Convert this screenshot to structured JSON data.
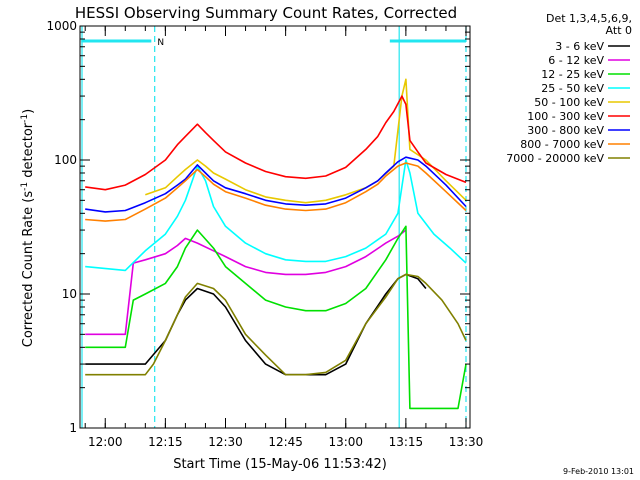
{
  "chart_data": {
    "type": "line",
    "title": "HESSI Observing Summary Count Rates, Corrected",
    "xlabel": "Start Time (15-May-06 11:53:42)",
    "ylabel": "Corrected Count Rate (s",
    "ylabel_sup1": "-1",
    "ylabel_mid": " detector",
    "ylabel_sup2": "-1",
    "ylabel_end": ")",
    "y_scale": "log",
    "ylim": [
      1,
      1000
    ],
    "xlim": [
      "11:53:42",
      "13:31:00"
    ],
    "y_tick_labels": [
      "1",
      "10",
      "100",
      "1000"
    ],
    "x_tick_labels": [
      "12:00",
      "12:15",
      "12:30",
      "12:45",
      "13:00",
      "13:15",
      "13:30"
    ],
    "legend_header": [
      "Det 1,3,4,5,6,9,",
      "Att 0"
    ],
    "legend_placement": "right",
    "footer": "9-Feb-2010 13:01",
    "markers": {
      "n_label": "N",
      "vertical_lines_time": [
        "12:12:20",
        "13:13:20",
        "13:30:00"
      ],
      "top_bars": [
        [
          "11:54:00",
          "12:11:30"
        ],
        [
          "13:11:00",
          "13:30:00"
        ]
      ],
      "color": "#22e6f0"
    },
    "series": [
      {
        "name": "3 - 6 keV",
        "color": "#000000",
        "x": [
          "11:55",
          "12:00",
          "12:10",
          "12:15",
          "12:18",
          "12:20",
          "12:23",
          "12:27",
          "12:30",
          "12:35",
          "12:40",
          "12:45",
          "12:50",
          "12:55",
          "13:00",
          "13:05",
          "13:10",
          "13:13",
          "13:15",
          "13:18",
          "13:20"
        ],
        "y": [
          3,
          3,
          3,
          4.5,
          7,
          9,
          11,
          10,
          8,
          4.5,
          3,
          2.5,
          2.5,
          2.5,
          3,
          6,
          10,
          13,
          14,
          13,
          11
        ]
      },
      {
        "name": "6 - 12 keV",
        "color": "#e000e0",
        "x": [
          "11:55",
          "12:05",
          "12:07",
          "12:10",
          "12:15",
          "12:18",
          "12:20",
          "12:23",
          "12:27",
          "12:30",
          "12:35",
          "12:40",
          "12:45",
          "12:50",
          "12:55",
          "13:00",
          "13:05",
          "13:10",
          "13:13",
          "13:15"
        ],
        "y": [
          5,
          5,
          17,
          18,
          20,
          23,
          26,
          24,
          21,
          19,
          16,
          14.5,
          14,
          14,
          14.5,
          16,
          19,
          24,
          27,
          30
        ]
      },
      {
        "name": "12 - 25 keV",
        "color": "#00e000",
        "x": [
          "11:55",
          "12:05",
          "12:07",
          "12:10",
          "12:15",
          "12:18",
          "12:20",
          "12:23",
          "12:27",
          "12:30",
          "12:35",
          "12:40",
          "12:45",
          "12:50",
          "12:55",
          "13:00",
          "13:05",
          "13:10",
          "13:13",
          "13:15",
          "13:16",
          "13:20",
          "13:28",
          "13:30"
        ],
        "y": [
          4,
          4,
          9,
          10,
          12,
          16,
          22,
          30,
          22,
          16,
          12,
          9,
          8,
          7.5,
          7.5,
          8.5,
          11,
          18,
          26,
          32,
          1.4,
          1.4,
          1.4,
          3
        ]
      },
      {
        "name": "25 - 50 keV",
        "color": "#00ffff",
        "x": [
          "11:55",
          "12:05",
          "12:10",
          "12:15",
          "12:18",
          "12:20",
          "12:23",
          "12:25",
          "12:27",
          "12:30",
          "12:35",
          "12:40",
          "12:45",
          "12:50",
          "12:55",
          "13:00",
          "13:05",
          "13:10",
          "13:13",
          "13:15",
          "13:16",
          "13:18",
          "13:22",
          "13:26",
          "13:30"
        ],
        "y": [
          16,
          15,
          21,
          28,
          38,
          50,
          90,
          70,
          45,
          32,
          24,
          20,
          18,
          17.5,
          17.5,
          19,
          22,
          28,
          40,
          100,
          80,
          40,
          28,
          22,
          17
        ]
      },
      {
        "name": "50 - 100 keV",
        "color": "#e8c800",
        "x": [
          "12:10",
          "12:15",
          "12:18",
          "12:20",
          "12:23",
          "12:25",
          "12:27",
          "12:30",
          "12:35",
          "12:40",
          "12:45",
          "12:50",
          "12:55",
          "13:00",
          "13:05",
          "13:08",
          "13:12",
          "13:14",
          "13:15",
          "13:16",
          "13:20",
          "13:25",
          "13:30"
        ],
        "y": [
          55,
          62,
          75,
          85,
          100,
          90,
          80,
          72,
          60,
          53,
          50,
          48,
          50,
          55,
          62,
          70,
          90,
          300,
          400,
          120,
          100,
          70,
          50
        ]
      },
      {
        "name": "100 - 300 keV",
        "color": "#ff0000",
        "x": [
          "11:55",
          "12:00",
          "12:05",
          "12:10",
          "12:15",
          "12:18",
          "12:20",
          "12:23",
          "12:25",
          "12:27",
          "12:30",
          "12:35",
          "12:40",
          "12:45",
          "12:50",
          "12:55",
          "13:00",
          "13:05",
          "13:08",
          "13:10",
          "13:12",
          "13:14",
          "13:15",
          "13:16",
          "13:18",
          "13:20",
          "13:25",
          "13:30"
        ],
        "y": [
          63,
          60,
          65,
          78,
          100,
          130,
          150,
          185,
          160,
          140,
          115,
          95,
          82,
          75,
          73,
          76,
          88,
          120,
          150,
          190,
          230,
          300,
          260,
          140,
          115,
          95,
          78,
          68
        ]
      },
      {
        "name": "300 - 800 keV",
        "color": "#0000ff",
        "x": [
          "11:55",
          "12:00",
          "12:05",
          "12:10",
          "12:15",
          "12:18",
          "12:20",
          "12:23",
          "12:25",
          "12:27",
          "12:30",
          "12:35",
          "12:40",
          "12:45",
          "12:50",
          "12:55",
          "13:00",
          "13:05",
          "13:08",
          "13:10",
          "13:13",
          "13:15",
          "13:18",
          "13:20",
          "13:25",
          "13:30"
        ],
        "y": [
          43,
          41,
          42,
          48,
          56,
          65,
          72,
          92,
          80,
          70,
          62,
          56,
          50,
          47,
          46,
          47,
          52,
          62,
          70,
          80,
          97,
          105,
          100,
          90,
          65,
          45
        ]
      },
      {
        "name": "800 - 7000 keV",
        "color": "#ff8000",
        "x": [
          "11:55",
          "12:00",
          "12:05",
          "12:10",
          "12:15",
          "12:18",
          "12:20",
          "12:23",
          "12:25",
          "12:27",
          "12:30",
          "12:35",
          "12:40",
          "12:45",
          "12:50",
          "12:55",
          "13:00",
          "13:05",
          "13:08",
          "13:10",
          "13:13",
          "13:15",
          "13:18",
          "13:20",
          "13:25",
          "13:30"
        ],
        "y": [
          36,
          35,
          36,
          43,
          52,
          62,
          70,
          85,
          75,
          66,
          58,
          52,
          46,
          43,
          42,
          43,
          48,
          58,
          66,
          76,
          90,
          95,
          90,
          80,
          58,
          42
        ]
      },
      {
        "name": "7000 - 20000 keV",
        "color": "#808000",
        "x": [
          "11:55",
          "12:00",
          "12:05",
          "12:10",
          "12:12",
          "12:15",
          "12:18",
          "12:20",
          "12:23",
          "12:27",
          "12:30",
          "12:35",
          "12:40",
          "12:45",
          "12:50",
          "12:55",
          "13:00",
          "13:05",
          "13:10",
          "13:13",
          "13:15",
          "13:18",
          "13:20",
          "13:24",
          "13:28",
          "13:30"
        ],
        "y": [
          2.5,
          2.5,
          2.5,
          2.5,
          3,
          4.5,
          7,
          9.5,
          12,
          11,
          9,
          5,
          3.5,
          2.5,
          2.5,
          2.6,
          3.2,
          6,
          9.5,
          13,
          14,
          13.5,
          12,
          9,
          6,
          4.5
        ]
      }
    ]
  }
}
